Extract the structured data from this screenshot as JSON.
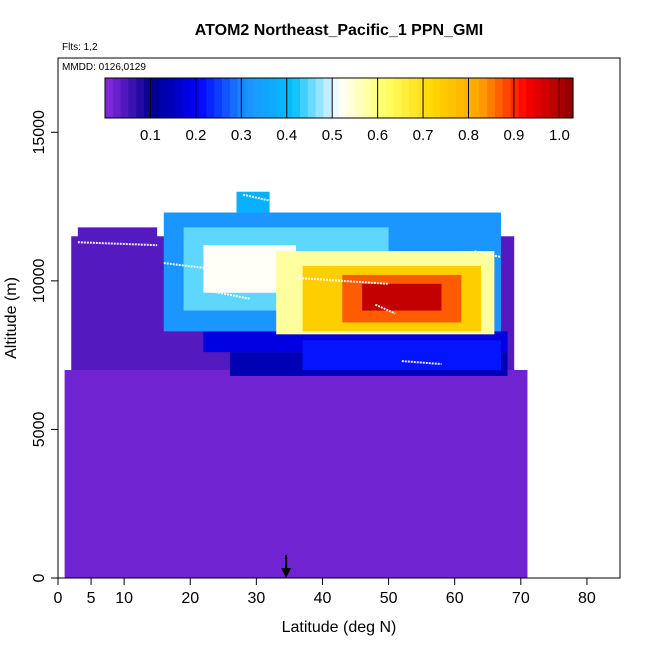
{
  "chart_data": {
    "type": "heatmap",
    "title": "ATOM2 Northeast_Pacific_1 PPN_GMI",
    "annotations": {
      "flights": "Flts: 1,2",
      "dates": "MMDD: 0126,0129"
    },
    "xlabel": "Latitude (deg N)",
    "ylabel": "Altitude (m)",
    "xlim": [
      0,
      85
    ],
    "ylim": [
      0,
      17500
    ],
    "x_ticks": [
      0,
      5,
      10,
      20,
      30,
      40,
      50,
      60,
      70,
      80
    ],
    "y_ticks": [
      0,
      5000,
      10000,
      15000
    ],
    "colorbar": {
      "min": 0.0,
      "max": 1.03,
      "ticks": [
        0.1,
        0.2,
        0.3,
        0.4,
        0.5,
        0.6,
        0.7,
        0.8,
        0.9,
        1.0
      ],
      "tick_labels": [
        "0.1",
        "0.2",
        "0.3",
        "0.4",
        "0.5",
        "0.6",
        "0.7",
        "0.8",
        "0.9",
        "1.0"
      ],
      "stops": [
        "#8A2BE2",
        "#00008B",
        "#0000FF",
        "#1E90FF",
        "#00BFFF",
        "#FFFFFF",
        "#FFFF66",
        "#FFD700",
        "#FFA500",
        "#FF0000",
        "#8B0000"
      ]
    },
    "marker": {
      "x": 34.5,
      "label": "arrow"
    },
    "background_value": 0.02,
    "field_bands": [
      {
        "y0": 0,
        "y1": 7000,
        "x0": 1,
        "x1": 71,
        "value": 0.02
      },
      {
        "y0": 7000,
        "y1": 11500,
        "x0": 2,
        "x1": 69,
        "value": 0.04
      },
      {
        "y0": 6800,
        "y1": 7600,
        "x0": 26,
        "x1": 68,
        "value": 0.14
      },
      {
        "y0": 7600,
        "y1": 8300,
        "x0": 22,
        "x1": 68,
        "value": 0.18
      },
      {
        "y0": 8300,
        "y1": 12300,
        "x0": 16,
        "x1": 67,
        "value": 0.32
      },
      {
        "y0": 12300,
        "y1": 13000,
        "x0": 27,
        "x1": 32,
        "value": 0.38
      },
      {
        "y0": 9000,
        "y1": 11800,
        "x0": 19,
        "x1": 50,
        "value": 0.45
      },
      {
        "y0": 9600,
        "y1": 11200,
        "x0": 22,
        "x1": 36,
        "value": 0.52
      },
      {
        "y0": 8200,
        "y1": 11000,
        "x0": 33,
        "x1": 66,
        "value": 0.58
      },
      {
        "y0": 8300,
        "y1": 10500,
        "x0": 37,
        "x1": 64,
        "value": 0.74
      },
      {
        "y0": 8600,
        "y1": 10200,
        "x0": 43,
        "x1": 61,
        "value": 0.87
      },
      {
        "y0": 9000,
        "y1": 9900,
        "x0": 46,
        "x1": 58,
        "value": 0.98
      },
      {
        "y0": 7000,
        "y1": 8000,
        "x0": 37,
        "x1": 67,
        "value": 0.22
      },
      {
        "y0": 11300,
        "y1": 11800,
        "x0": 3,
        "x1": 15,
        "value": 0.04
      }
    ],
    "flight_tracks": [
      {
        "x": [
          3,
          15
        ],
        "y": [
          11300,
          11200
        ]
      },
      {
        "x": [
          16,
          27
        ],
        "y": [
          10600,
          10300
        ]
      },
      {
        "x": [
          28,
          32
        ],
        "y": [
          12900,
          12700
        ]
      },
      {
        "x": [
          22,
          29
        ],
        "y": [
          9700,
          9400
        ]
      },
      {
        "x": [
          36,
          50
        ],
        "y": [
          10100,
          9900
        ]
      },
      {
        "x": [
          48,
          51
        ],
        "y": [
          9200,
          8900
        ]
      },
      {
        "x": [
          52,
          58
        ],
        "y": [
          7300,
          7200
        ]
      },
      {
        "x": [
          63,
          67
        ],
        "y": [
          11000,
          10800
        ]
      }
    ]
  }
}
